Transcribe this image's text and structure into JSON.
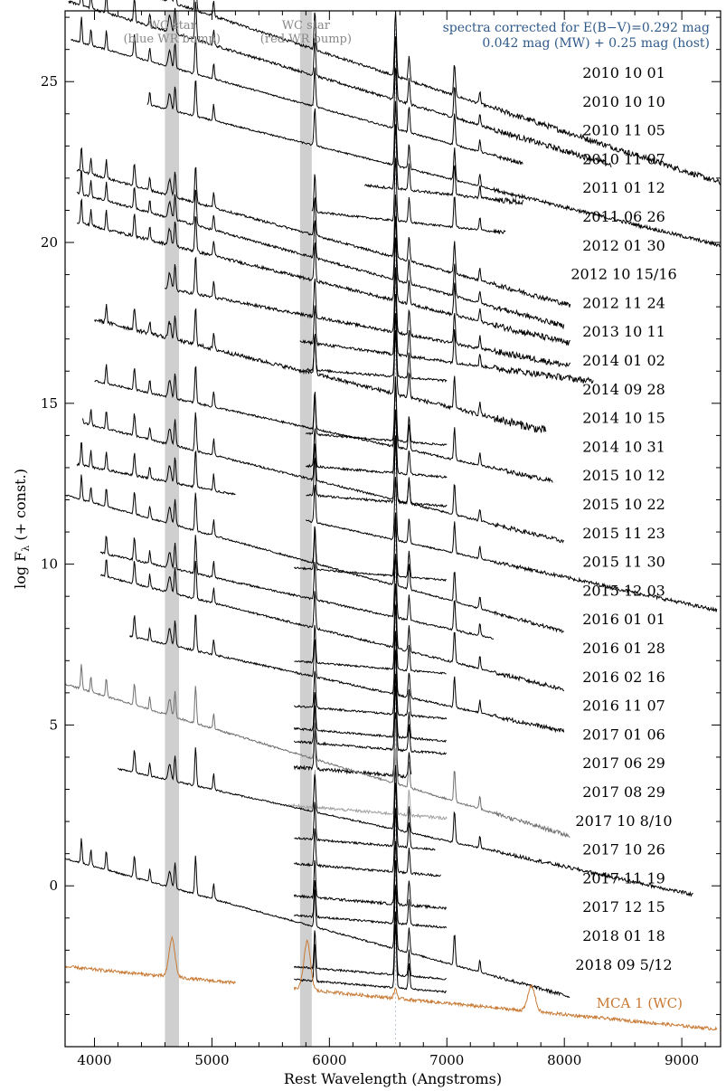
{
  "chart_data": {
    "type": "line",
    "title": "",
    "xlabel": "Rest Wavelength (Angstroms)",
    "ylabel_text": "log F",
    "ylabel_sub": "λ",
    "ylabel_suffix": " (+ const.)",
    "xlim": [
      3750,
      9330
    ],
    "ylim": [
      -5,
      27.2
    ],
    "xticks": [
      4000,
      5000,
      6000,
      7000,
      8000,
      9000
    ],
    "yticks": [
      0,
      5,
      10,
      15,
      20,
      25
    ],
    "bands": [
      {
        "range": [
          4600,
          4720
        ],
        "label1": "WC star",
        "label2": "(blue WR bump)",
        "color": "#cfcfcf"
      },
      {
        "range": [
          5750,
          5850
        ],
        "label1": "WC star",
        "label2": "(red WR bump)",
        "color": "#cfcfcf"
      }
    ],
    "halpha_line": 6563,
    "annotation_line1": "spectra corrected for E(B−V)=0.292 mag",
    "annotation_line2": "0.042 mag (MW) + 0.25 mag (host)",
    "emission_lines": [
      {
        "w": 3889,
        "a": 0.8,
        "s": 6
      },
      {
        "w": 3970,
        "a": 0.5,
        "s": 6
      },
      {
        "w": 4101,
        "a": 0.6,
        "s": 6
      },
      {
        "w": 4340,
        "a": 0.7,
        "s": 7
      },
      {
        "w": 4471,
        "a": 0.4,
        "s": 6
      },
      {
        "w": 4640,
        "a": 0.5,
        "s": 12
      },
      {
        "w": 4686,
        "a": 0.8,
        "s": 7
      },
      {
        "w": 4861,
        "a": 1.2,
        "s": 7
      },
      {
        "w": 5015,
        "a": 0.5,
        "s": 6
      },
      {
        "w": 5876,
        "a": 1.2,
        "s": 7
      },
      {
        "w": 6563,
        "a": 2.0,
        "s": 8
      },
      {
        "w": 6678,
        "a": 0.8,
        "s": 7
      },
      {
        "w": 7065,
        "a": 1.0,
        "s": 7
      },
      {
        "w": 7281,
        "a": 0.4,
        "s": 6
      }
    ],
    "series": [
      {
        "date": "2010 10 01",
        "start": 3750,
        "end": 9330,
        "level": 25.85,
        "slope": 1.2,
        "noise": 0.08,
        "color": "#000000"
      },
      {
        "date": "2010 10 10",
        "start": 3780,
        "end": 8400,
        "level": 25.05,
        "slope": 1.1,
        "noise": 0.08,
        "color": "#000000"
      },
      {
        "date": "2010 11 05",
        "start": 3800,
        "end": 7650,
        "level": 24.1,
        "slope": 1.0,
        "noise": 0.05,
        "color": "#000000"
      },
      {
        "date": "2010 11 07",
        "start": 4450,
        "end": 9330,
        "level": 22.9,
        "slope": 0.9,
        "noise": 0.05,
        "color": "#000000"
      },
      {
        "date": "2011 01 12",
        "start": 6300,
        "end": 7650,
        "level": 21.9,
        "slope": 0.4,
        "noise": 0.08,
        "color": "#000000"
      },
      {
        "date": "2011 06 26",
        "start": 5850,
        "end": 7500,
        "level": 20.9,
        "slope": 0.4,
        "noise": 0.06,
        "color": "#000000"
      },
      {
        "date": "2012 01 30",
        "start": 3850,
        "end": 8050,
        "level": 20.1,
        "slope": 1.0,
        "noise": 0.07,
        "color": "#000000"
      },
      {
        "date": "2012 10 15/16",
        "start": 3850,
        "end": 8000,
        "level": 19.4,
        "slope": 1.0,
        "noise": 0.07,
        "color": "#000000"
      },
      {
        "date": "2012 11 24",
        "start": 3850,
        "end": 8050,
        "level": 18.7,
        "slope": 0.9,
        "noise": 0.09,
        "color": "#000000"
      },
      {
        "date": "2013 10 11",
        "start": 4600,
        "end": 8050,
        "level": 17.6,
        "slope": 0.7,
        "noise": 0.09,
        "color": "#000000"
      },
      {
        "date": "2014 01 02",
        "start": 5750,
        "end": 8250,
        "level": 16.8,
        "slope": 0.5,
        "noise": 0.09,
        "color": "#000000"
      },
      {
        "date": "2014 09 28",
        "start": 5800,
        "end": 7000,
        "level": 16.0,
        "slope": 0.3,
        "noise": 0.07,
        "color": "#000000"
      },
      {
        "date": "2014 10 15",
        "start": 4000,
        "end": 7850,
        "level": 15.8,
        "slope": 0.9,
        "noise": 0.12,
        "color": "#000000"
      },
      {
        "date": "2014 10 31",
        "start": 5800,
        "end": 7000,
        "level": 14.0,
        "slope": 0.3,
        "noise": 0.06,
        "color": "#000000"
      },
      {
        "date": "2015 10 12",
        "start": 4000,
        "end": 7900,
        "level": 14.1,
        "slope": 0.8,
        "noise": 0.06,
        "color": "#000000"
      },
      {
        "date": "2015 10 22",
        "start": 5800,
        "end": 7000,
        "level": 13.0,
        "slope": 0.3,
        "noise": 0.07,
        "color": "#000000"
      },
      {
        "date": "2015 11 23",
        "start": 5800,
        "end": 7000,
        "level": 12.1,
        "slope": 0.3,
        "noise": 0.07,
        "color": "#000000"
      },
      {
        "date": "2015 11 30",
        "start": 3900,
        "end": 8000,
        "level": 12.5,
        "slope": 0.9,
        "noise": 0.06,
        "color": "#000000"
      },
      {
        "date": "2015 12 03",
        "start": 3850,
        "end": 5200,
        "level": 11.6,
        "slope": 0.7,
        "noise": 0.07,
        "color": "#000000"
      },
      {
        "date": "2016 01 01",
        "start": 5800,
        "end": 9300,
        "level": 11.2,
        "slope": 0.8,
        "noise": 0.05,
        "color": "#000000"
      },
      {
        "date": "2016 01 28",
        "start": 5700,
        "end": 7000,
        "level": 9.8,
        "slope": 0.3,
        "noise": 0.05,
        "color": "#000000"
      },
      {
        "date": "2016 02 16",
        "start": 3750,
        "end": 8000,
        "level": 9.9,
        "slope": 1.0,
        "noise": 0.05,
        "color": "#000000"
      },
      {
        "date": "2016 11 07",
        "start": 4050,
        "end": 7400,
        "level": 8.8,
        "slope": 0.8,
        "noise": 0.06,
        "color": "#000000"
      },
      {
        "date": "2017 01 06",
        "start": 4050,
        "end": 8000,
        "level": 7.9,
        "slope": 0.9,
        "noise": 0.06,
        "color": "#000000"
      },
      {
        "date": "2017 06 29",
        "start": 5700,
        "end": 7000,
        "level": 6.9,
        "slope": 0.3,
        "noise": 0.05,
        "color": "#000000"
      },
      {
        "date": "2017 08 29",
        "start": 4300,
        "end": 8000,
        "level": 6.4,
        "slope": 0.8,
        "noise": 0.06,
        "color": "#000000"
      },
      {
        "date": "2017 10 8/10",
        "start": 5700,
        "end": 7000,
        "level": 5.5,
        "slope": 0.3,
        "noise": 0.06,
        "color": "#000000"
      },
      {
        "date": "2017 10 26",
        "start": 5700,
        "end": 7000,
        "level": 4.8,
        "slope": 0.3,
        "noise": 0.06,
        "color": "#000000"
      },
      {
        "date": "2017 11 19",
        "start": 5700,
        "end": 7000,
        "level": 4.4,
        "slope": 0.3,
        "noise": 0.07,
        "color": "#000000"
      },
      {
        "date": "2017 12 15",
        "start": 5700,
        "end": 6700,
        "level": 3.6,
        "slope": 0.3,
        "noise": 0.1,
        "color": "#000000"
      },
      {
        "date": "2018 01 18",
        "start": 3750,
        "end": 8050,
        "level": 3.8,
        "slope": 1.1,
        "noise": 0.06,
        "color": "#707070"
      },
      {
        "date": "2018 09 5/12",
        "start": 5650,
        "end": 7000,
        "level": 2.4,
        "slope": 0.3,
        "noise": 0.09,
        "color": "#a0a0a0"
      }
    ],
    "extra_series": [
      {
        "start": 4200,
        "end": 9100,
        "level": 2.2,
        "slope": 0.8,
        "noise": 0.05,
        "color": "#000000"
      },
      {
        "start": 5700,
        "end": 6900,
        "level": 1.4,
        "slope": 0.3,
        "noise": 0.06,
        "color": "#000000"
      },
      {
        "start": 5700,
        "end": 6950,
        "level": 0.6,
        "slope": 0.3,
        "noise": 0.07,
        "color": "#000000"
      },
      {
        "start": 5700,
        "end": 7000,
        "level": -0.4,
        "slope": 0.3,
        "noise": 0.08,
        "color": "#000000"
      },
      {
        "start": 5700,
        "end": 7000,
        "level": -1.0,
        "slope": 0.3,
        "noise": 0.06,
        "color": "#000000"
      },
      {
        "start": 3750,
        "end": 8050,
        "level": -1.4,
        "slope": 1.0,
        "noise": 0.05,
        "color": "#000000"
      },
      {
        "start": 5700,
        "end": 7000,
        "level": -2.6,
        "slope": 0.3,
        "noise": 0.06,
        "color": "#000000"
      },
      {
        "start": 5700,
        "end": 7000,
        "level": -3.0,
        "slope": 0.3,
        "noise": 0.06,
        "color": "#000000"
      }
    ],
    "template": {
      "label": "MCA 1 (WC)",
      "color": "#c87a35",
      "segments": [
        [
          3750,
          5200
        ],
        [
          5700,
          9300
        ]
      ],
      "level": -3.3,
      "slope": 0.35,
      "noise": 0.1,
      "bumps": [
        {
          "w": 4660,
          "a": 1.2,
          "s": 25
        },
        {
          "w": 5810,
          "a": 1.5,
          "s": 28
        },
        {
          "w": 7720,
          "a": 0.8,
          "s": 30
        },
        {
          "w": 6563,
          "a": 0.3,
          "s": 12
        }
      ]
    }
  }
}
